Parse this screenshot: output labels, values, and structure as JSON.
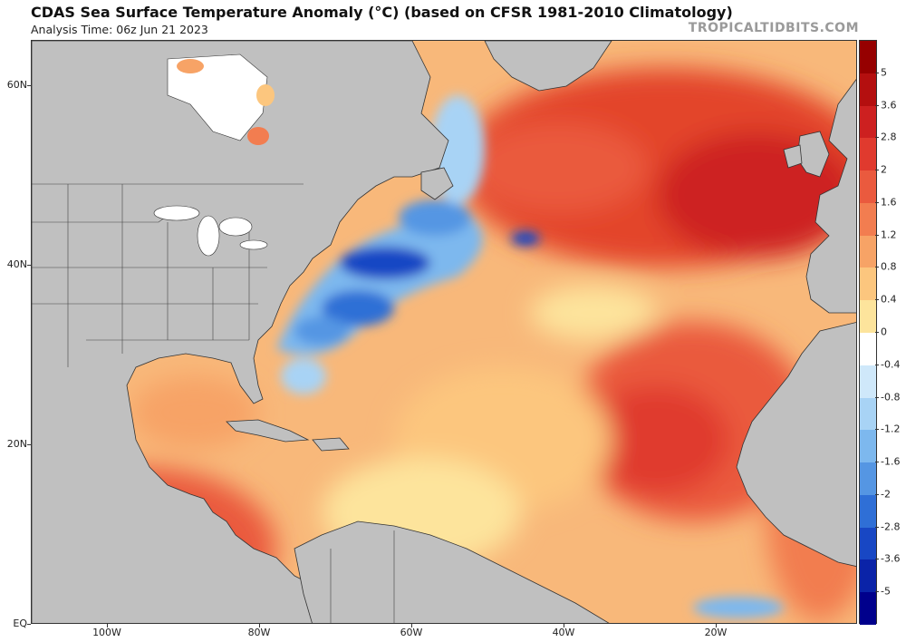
{
  "header": {
    "title": "CDAS Sea Surface Temperature Anomaly (°C) (based on CFSR 1981-2010 Climatology)",
    "analysis_time": "Analysis Time: 06z Jun 21 2023",
    "credit": "TROPICALTIDBITS.COM"
  },
  "map": {
    "lat_labels": [
      {
        "text": "60N"
      },
      {
        "text": "40N"
      },
      {
        "text": "20N"
      },
      {
        "text": "EQ"
      }
    ],
    "lon_labels": [
      {
        "text": "100W"
      },
      {
        "text": "80W"
      },
      {
        "text": "60W"
      },
      {
        "text": "40W"
      },
      {
        "text": "20W"
      }
    ],
    "colors": {
      "land": "#c0c0c0",
      "no_data": "#ffffff",
      "warm": "#e3442c",
      "cool": "#3d7fd6"
    }
  },
  "colorbar": {
    "labels": [
      "5",
      "3.6",
      "2.8",
      "2",
      "1.6",
      "1.2",
      "0.8",
      "0.4",
      "0",
      "-0.4",
      "-0.8",
      "-1.2",
      "-1.6",
      "-2",
      "-2.8",
      "-3.6",
      "-5"
    ],
    "colors": [
      "#960000",
      "#b40f0f",
      "#cd2020",
      "#e03a2e",
      "#ea5a3e",
      "#f27d50",
      "#f7a366",
      "#fcc67e",
      "#fde49c",
      "#ffffff",
      "#cfe8fa",
      "#a8d3f5",
      "#7db8ee",
      "#5596e3",
      "#2f6fd6",
      "#1847c4",
      "#0a23a8",
      "#00008c"
    ]
  }
}
